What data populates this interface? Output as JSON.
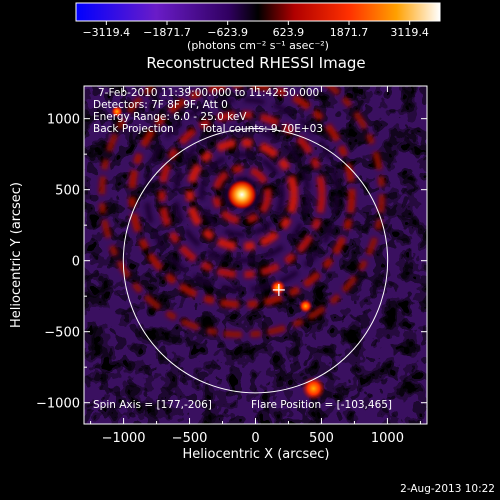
{
  "colorbar": {
    "ticks": [
      "-3119.4",
      "-1871.7",
      "-623.9",
      "623.9",
      "1871.7",
      "3119.4"
    ],
    "units": "(photons cm⁻² s⁻¹ asec⁻²)"
  },
  "chart_data": {
    "type": "heatmap",
    "title": "Reconstructed RHESSI Image",
    "xlabel": "Heliocentric X (arcsec)",
    "ylabel": "Heliocentric Y (arcsec)",
    "xlim": [
      -1300,
      1300
    ],
    "ylim": [
      -1150,
      1230
    ],
    "xticks": [
      -1000,
      -500,
      0,
      500,
      1000
    ],
    "xtick_labels": [
      "−1000",
      "−500",
      "0",
      "500",
      "1000"
    ],
    "yticks": [
      -1000,
      -500,
      0,
      500,
      1000
    ],
    "ytick_labels": [
      "−1000",
      "−500",
      "0",
      "500",
      "1000"
    ],
    "value_range": [
      -3119.4,
      3119.4
    ],
    "colormap": "blue-purple-black-red-orange-yellow-white",
    "solar_disk_radius": 965,
    "spin_axis": [
      177,
      -206
    ],
    "flare_position": [
      -103,
      465
    ],
    "annotations": {
      "time_range": "7-Feb-2010 11:39:00.000 to 11:42:50.000",
      "detectors": "Detectors: 7F 8F 9F, Att 0",
      "energy": "Energy Range: 6.0 - 25.0 keV",
      "method": "Back Projection",
      "counts": "Total counts: 9.70E+03",
      "spin_axis": "Spin Axis = [177,-206]",
      "flare_position": "Flare Position = [-103,465]"
    }
  },
  "footer": {
    "date": "2-Aug-2013 10:22"
  }
}
